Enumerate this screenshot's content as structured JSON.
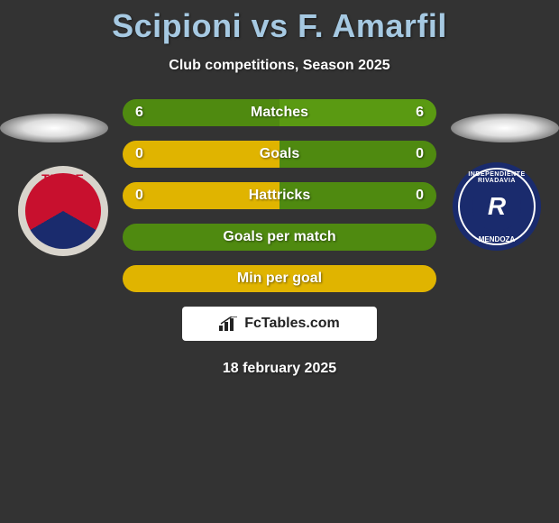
{
  "title": "Scipioni vs F. Amarfil",
  "subtitle": "Club competitions, Season 2025",
  "date": "18 february 2025",
  "logo": {
    "text": "FcTables.com"
  },
  "colors": {
    "bg": "#333333",
    "title": "#a6c9e2",
    "text": "#ffffff",
    "bar_green": "#4f8a10",
    "bar_green_alt": "#5a9a12",
    "bar_yellow": "#e0b400",
    "bar_yellow_alt": "#d0a800",
    "bar_split_left": "#e0b400",
    "bar_split_right": "#4f8a10"
  },
  "crests": {
    "left": {
      "label": "TIGRE",
      "outer": "#d8d4cc",
      "c1": "#c8102e",
      "c2": "#1a2b6d"
    },
    "right": {
      "label_top": "INDEPENDIENTE RIVADAVIA",
      "label_bottom": "MENDOZA",
      "mono": "R",
      "bg": "#1a2b6d",
      "ring": "#ffffff"
    }
  },
  "bars": [
    {
      "label": "Matches",
      "left": "6",
      "right": "6",
      "variant": "green-green"
    },
    {
      "label": "Goals",
      "left": "0",
      "right": "0",
      "variant": "yellow-green"
    },
    {
      "label": "Hattricks",
      "left": "0",
      "right": "0",
      "variant": "yellow-green"
    },
    {
      "label": "Goals per match",
      "left": "",
      "right": "",
      "variant": "green-solid"
    },
    {
      "label": "Min per goal",
      "left": "",
      "right": "",
      "variant": "yellow-solid"
    }
  ]
}
